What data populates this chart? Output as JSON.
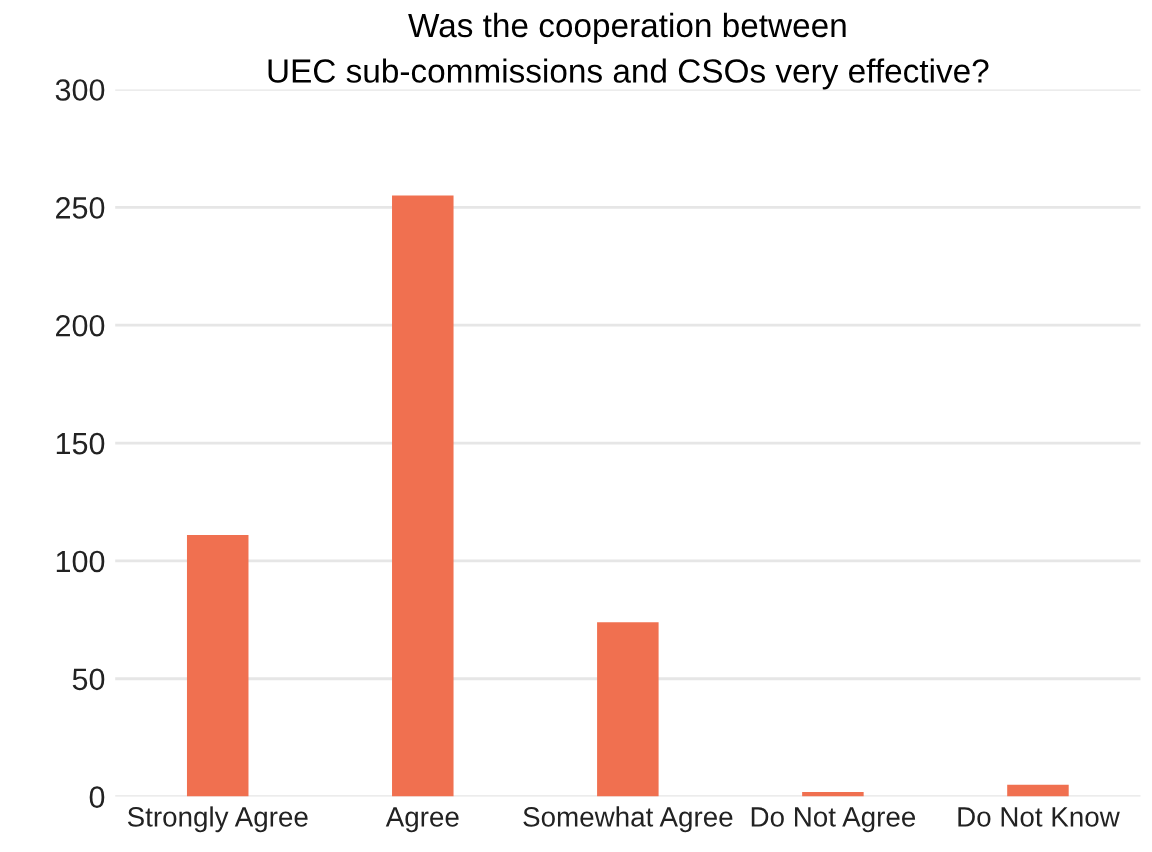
{
  "chart_data": {
    "type": "bar",
    "title": "Was the cooperation between\nUEC sub-commissions and CSOs very effective?",
    "categories": [
      "Strongly Agree",
      "Agree",
      "Somewhat Agree",
      "Do Not Agree",
      "Do Not Know"
    ],
    "values": [
      111,
      255,
      74,
      2,
      5
    ],
    "color": "#f07050",
    "ylim": [
      0,
      300
    ],
    "yticks": [
      0,
      50,
      100,
      150,
      200,
      250,
      300
    ],
    "grid": "y",
    "legend": false
  }
}
